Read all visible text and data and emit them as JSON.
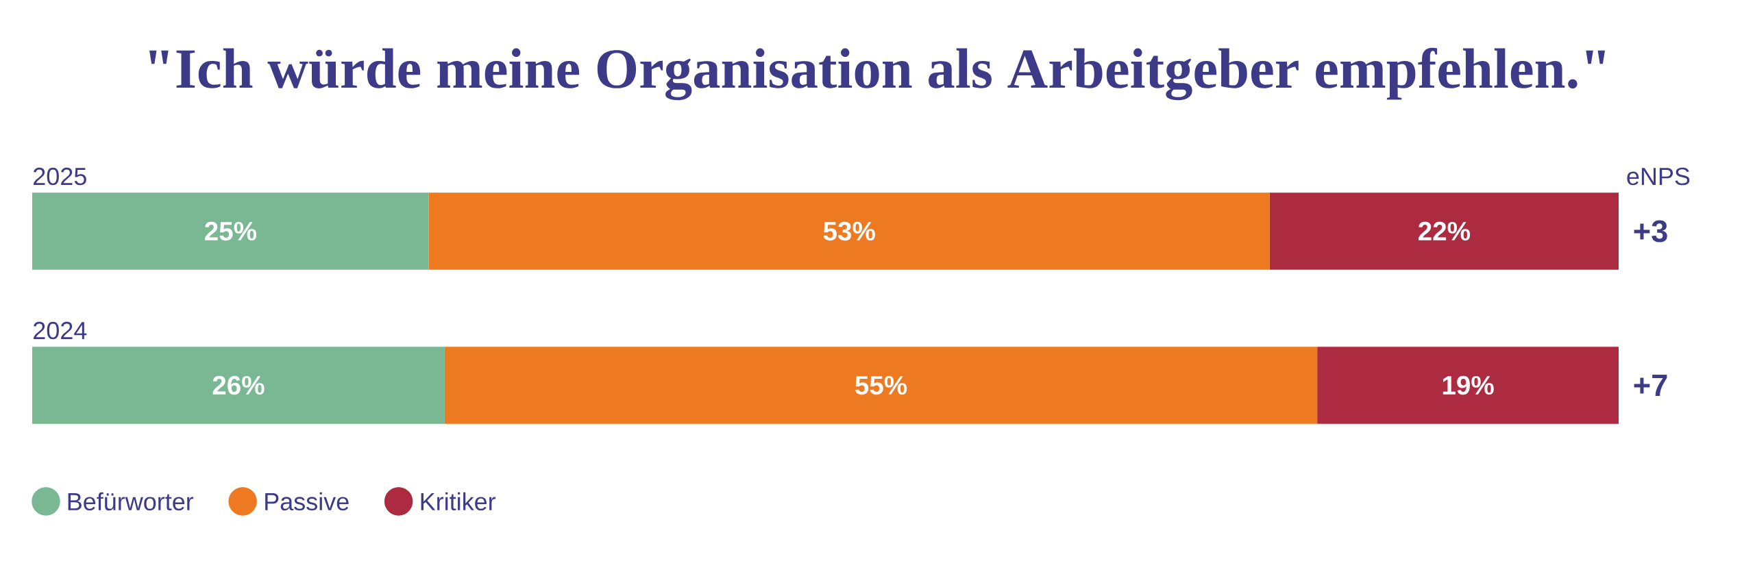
{
  "chart_data": {
    "type": "bar",
    "orientation": "horizontal",
    "stacked": true,
    "title": "\"Ich würde meine Organisation als Arbeitgeber empfehlen.\"",
    "categories": [
      "2025",
      "2024"
    ],
    "xlim": [
      0,
      100
    ],
    "series": [
      {
        "name": "Befürworter",
        "color": "#7ab793",
        "values": [
          25,
          26
        ],
        "value_labels": [
          "25%",
          "26%"
        ]
      },
      {
        "name": "Passive",
        "color": "#ed7920",
        "values": [
          53,
          55
        ],
        "value_labels": [
          "53%",
          "55%"
        ]
      },
      {
        "name": "Kritiker",
        "color": "#ad2b41",
        "values": [
          22,
          19
        ],
        "value_labels": [
          "22%",
          "19%"
        ]
      }
    ],
    "annotations": [
      "eNPS",
      "+3",
      "+7"
    ],
    "legend": "bottom left"
  }
}
